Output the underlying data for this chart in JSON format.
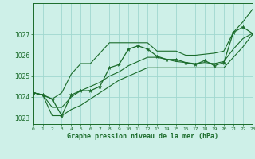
{
  "xlabel": "Graphe pression niveau de la mer (hPa)",
  "background_color": "#cef0e8",
  "grid_color": "#a0d8cf",
  "line_color": "#1a6b2a",
  "xlim": [
    0,
    23
  ],
  "ylim": [
    1022.7,
    1028.5
  ],
  "yticks": [
    1023,
    1024,
    1025,
    1026,
    1027
  ],
  "hours": [
    0,
    1,
    2,
    3,
    4,
    5,
    6,
    7,
    8,
    9,
    10,
    11,
    12,
    13,
    14,
    15,
    16,
    17,
    18,
    19,
    20,
    21,
    22,
    23
  ],
  "xtick_labels": [
    "0",
    "1",
    "2",
    "3",
    "4",
    "5",
    "6",
    "7",
    "8",
    "9",
    "10",
    "11",
    "12",
    "13",
    "14",
    "15",
    "16",
    "17",
    "18",
    "19",
    "20",
    "21",
    "22",
    "23"
  ],
  "pressure": [
    1024.2,
    1024.1,
    1023.9,
    1023.1,
    1024.1,
    1024.3,
    1024.3,
    1024.5,
    1025.4,
    1025.55,
    1026.3,
    1026.45,
    1026.3,
    1025.95,
    1025.8,
    1025.8,
    1025.65,
    1025.55,
    1025.75,
    1025.5,
    1025.65,
    1027.1,
    1027.35,
    1027.05
  ],
  "upper_env": [
    1024.2,
    1024.1,
    1023.9,
    1024.2,
    1025.1,
    1025.6,
    1025.6,
    1026.1,
    1026.6,
    1026.6,
    1026.6,
    1026.6,
    1026.6,
    1026.2,
    1026.2,
    1026.2,
    1026.0,
    1026.0,
    1026.05,
    1026.1,
    1026.2,
    1027.1,
    1027.6,
    1028.2
  ],
  "lower_env": [
    1024.2,
    1024.1,
    1023.1,
    1023.1,
    1023.4,
    1023.6,
    1023.9,
    1024.2,
    1024.5,
    1024.8,
    1025.0,
    1025.2,
    1025.4,
    1025.4,
    1025.4,
    1025.4,
    1025.4,
    1025.4,
    1025.4,
    1025.4,
    1025.4,
    1025.9,
    1026.4,
    1027.0
  ],
  "smooth_line": [
    1024.2,
    1024.1,
    1023.5,
    1023.5,
    1024.0,
    1024.3,
    1024.5,
    1024.7,
    1025.0,
    1025.2,
    1025.5,
    1025.7,
    1025.9,
    1025.9,
    1025.8,
    1025.7,
    1025.65,
    1025.6,
    1025.65,
    1025.6,
    1025.7,
    1026.3,
    1026.8,
    1027.05
  ]
}
